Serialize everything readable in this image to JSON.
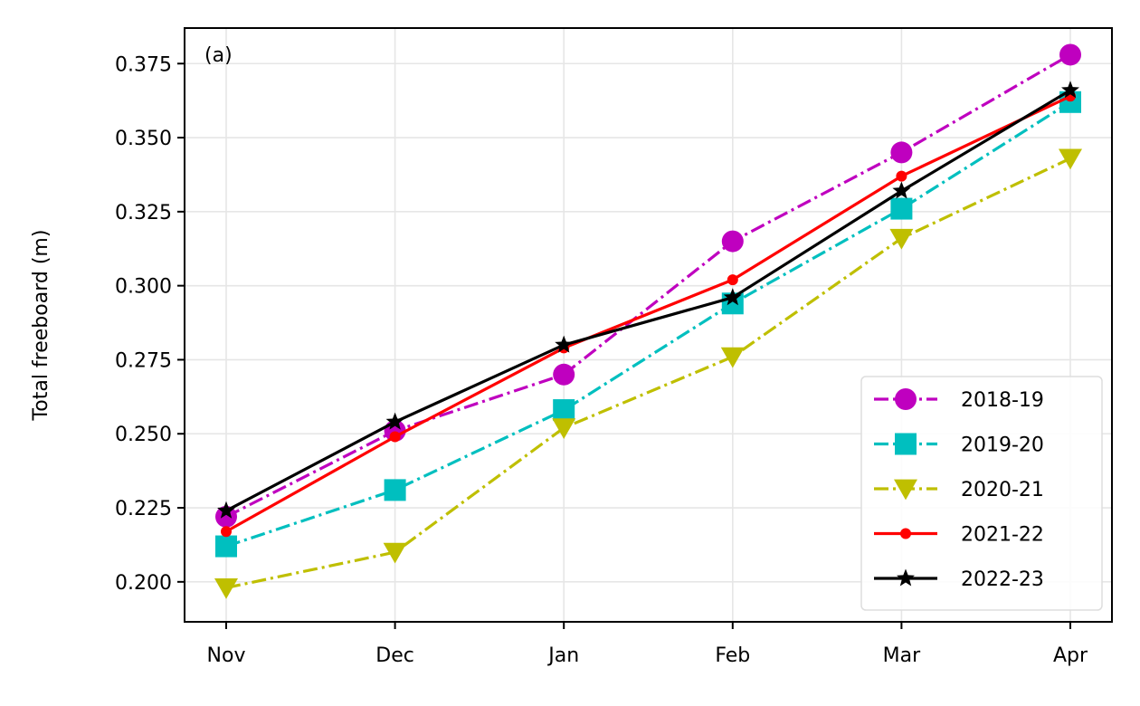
{
  "chart_data": {
    "type": "line",
    "panel_label": "(a)",
    "xlabel": "",
    "ylabel": "Total freeboard (m)",
    "categories": [
      "Nov",
      "Dec",
      "Jan",
      "Feb",
      "Mar",
      "Apr"
    ],
    "ylim": [
      0.1865,
      0.387
    ],
    "yticks": [
      0.2,
      0.225,
      0.25,
      0.275,
      0.3,
      0.325,
      0.35,
      0.375
    ],
    "ytick_labels": [
      "0.200",
      "0.225",
      "0.250",
      "0.275",
      "0.300",
      "0.325",
      "0.350",
      "0.375"
    ],
    "grid": true,
    "legend_position": "bottom-right",
    "series": [
      {
        "name": "2018-19",
        "color": "#bf00bf",
        "linestyle": "dashdot",
        "marker": "circle",
        "values": [
          0.222,
          0.251,
          0.27,
          0.315,
          0.345,
          0.378
        ]
      },
      {
        "name": "2019-20",
        "color": "#00bfbf",
        "linestyle": "dashdot",
        "marker": "square",
        "values": [
          0.212,
          0.231,
          0.258,
          0.294,
          0.326,
          0.362
        ]
      },
      {
        "name": "2020-21",
        "color": "#bfbf00",
        "linestyle": "dashdot",
        "marker": "triangle-down",
        "values": [
          0.198,
          0.21,
          0.252,
          0.276,
          0.316,
          0.343
        ]
      },
      {
        "name": "2021-22",
        "color": "#ff0000",
        "linestyle": "solid",
        "marker": "point",
        "values": [
          0.217,
          0.249,
          0.279,
          0.302,
          0.337,
          0.364
        ]
      },
      {
        "name": "2022-23",
        "color": "#000000",
        "linestyle": "solid",
        "marker": "star",
        "values": [
          0.224,
          0.254,
          0.28,
          0.296,
          0.332,
          0.366
        ]
      }
    ]
  }
}
